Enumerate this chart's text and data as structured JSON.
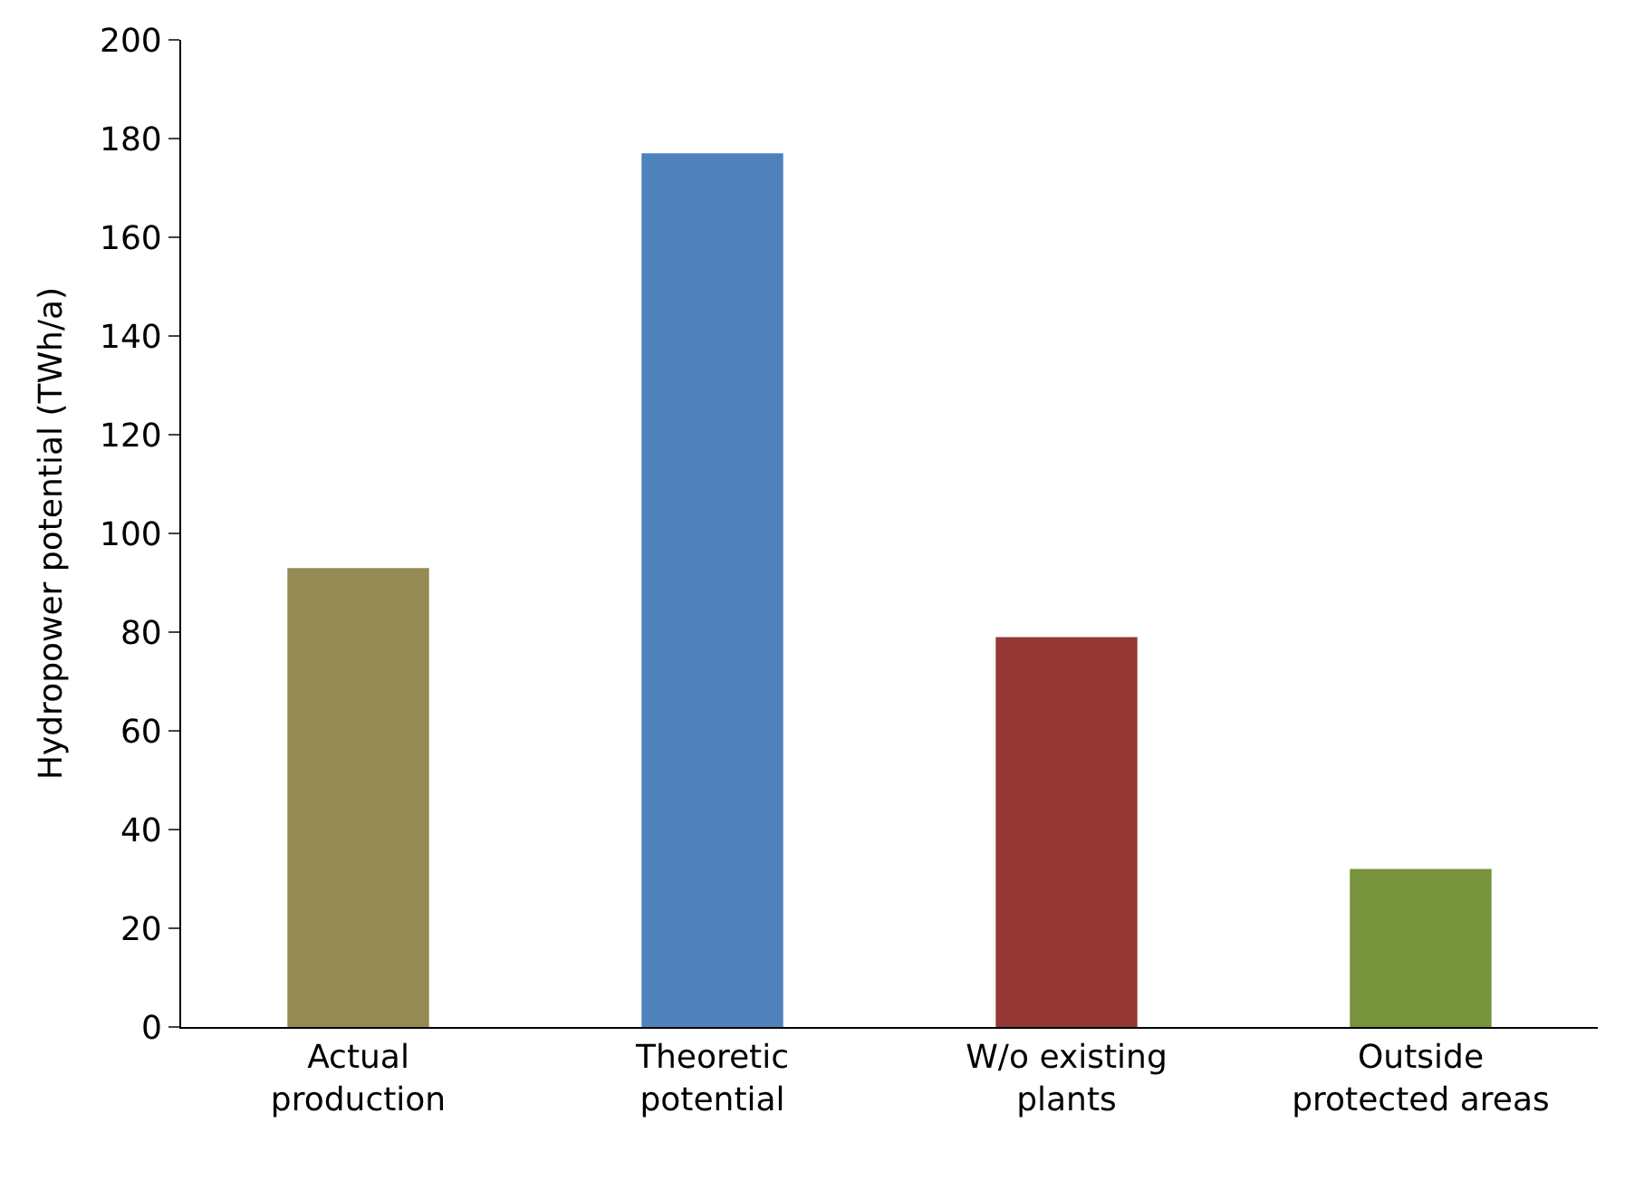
{
  "chart_data": {
    "type": "bar",
    "ylabel": "Hydropower potential (TWh/a)",
    "categories": [
      "Actual\nproduction",
      "Theoretic\npotential",
      "W/o existing\nplants",
      "Outside\nprotected areas"
    ],
    "values": [
      93,
      177,
      79,
      32
    ],
    "colors": [
      "#948a54",
      "#4f81bd",
      "#953735",
      "#77933c"
    ],
    "ylim": [
      0,
      200
    ],
    "yticks": [
      0,
      20,
      40,
      60,
      80,
      100,
      120,
      140,
      160,
      180,
      200
    ]
  }
}
